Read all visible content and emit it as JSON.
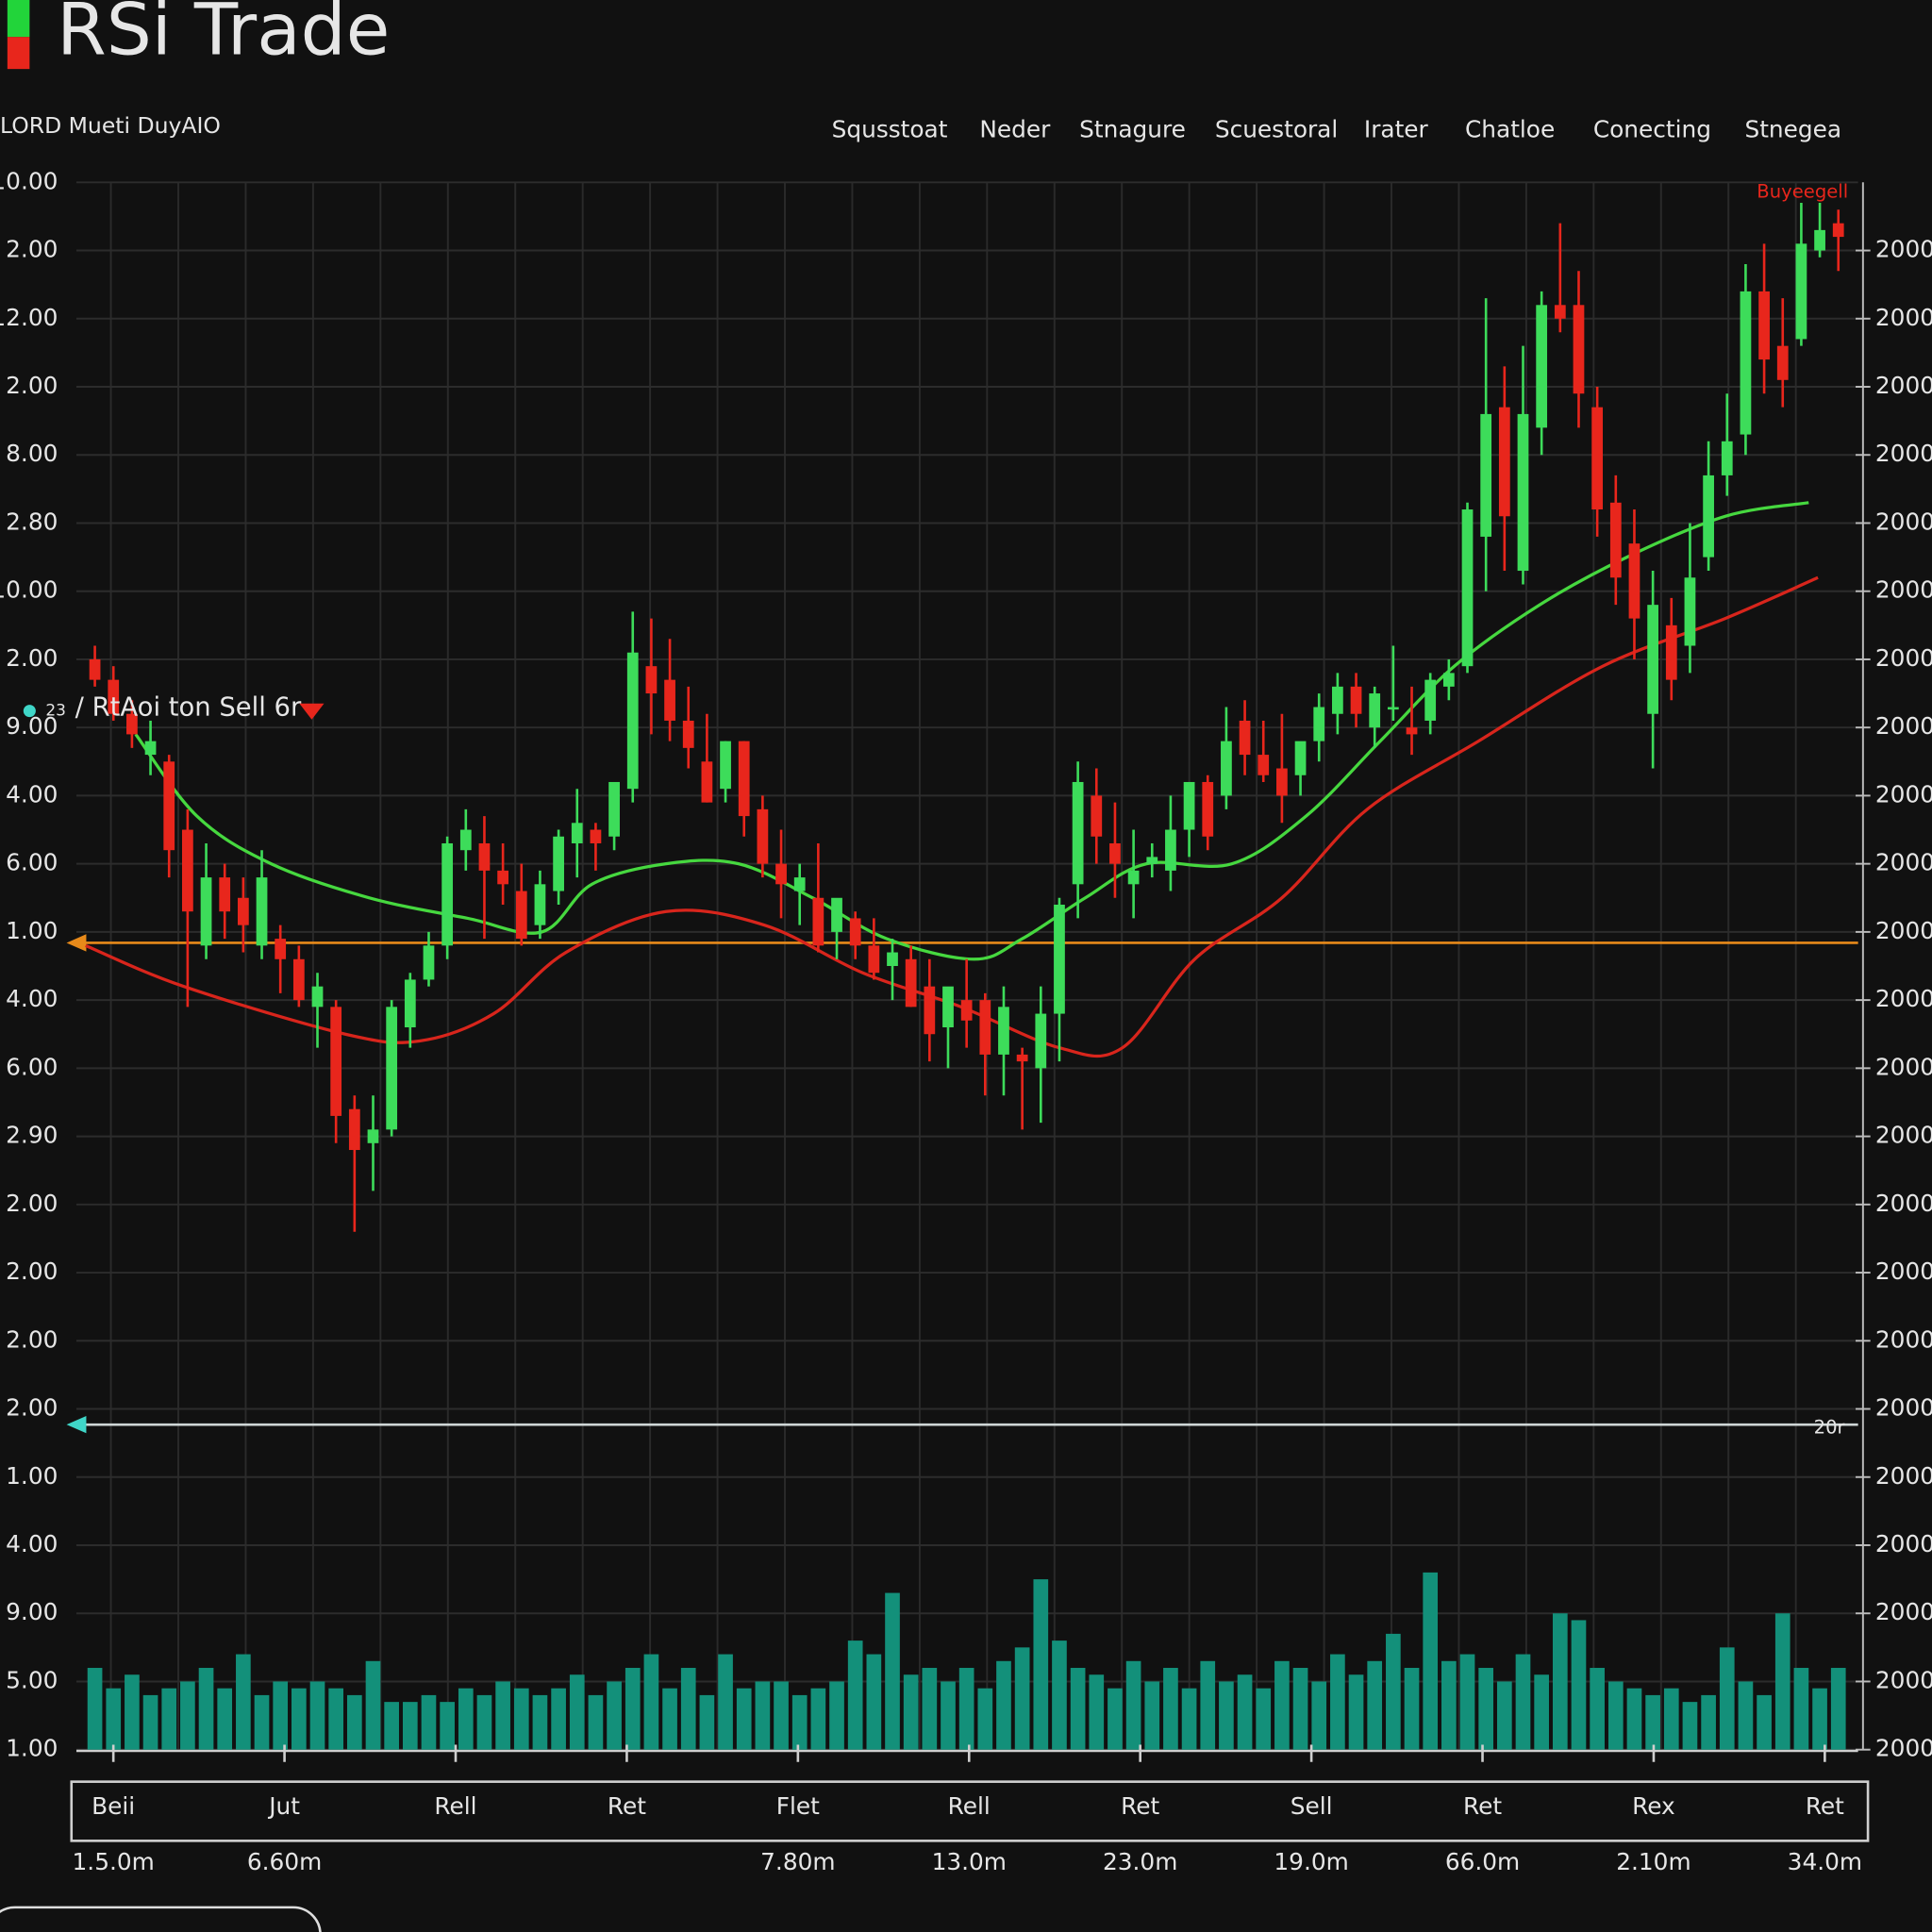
{
  "header": {
    "title": "RSi Trade",
    "subtitle": "LORD  Mueti DuyAIO",
    "menu": [
      "Squsstoat",
      "Neder",
      "Stnagure",
      "Scuestoral",
      "Irater",
      "Chatloe",
      "Conecting",
      "Stnegea"
    ]
  },
  "chart_data": {
    "type": "candlestick",
    "annotation_count": "23",
    "annotation": "/ RtAoi ton Sell 6r",
    "corner_label": "Buyeegell",
    "line_label": "20r",
    "up_color": "#3ddc5a",
    "down_color": "#e8261c",
    "volume_color": "#13907a",
    "ylim": [
      0,
      23
    ],
    "yticks": [
      {
        "value": 23,
        "label": "10.00"
      },
      {
        "value": 22,
        "label": "2.00"
      },
      {
        "value": 21,
        "label": "12.00"
      },
      {
        "value": 20,
        "label": "2.00"
      },
      {
        "value": 19,
        "label": "8.00"
      },
      {
        "value": 18,
        "label": "2.80"
      },
      {
        "value": 17,
        "label": "10.00"
      },
      {
        "value": 16,
        "label": "2.00"
      },
      {
        "value": 15,
        "label": "9.00"
      },
      {
        "value": 14,
        "label": "4.00"
      },
      {
        "value": 13,
        "label": "6.00"
      },
      {
        "value": 12,
        "label": "1.00"
      },
      {
        "value": 11,
        "label": "4.00"
      },
      {
        "value": 10,
        "label": "6.00"
      },
      {
        "value": 9,
        "label": "2.90"
      },
      {
        "value": 8,
        "label": "2.00"
      },
      {
        "value": 7,
        "label": "2.00"
      },
      {
        "value": 6,
        "label": "2.00"
      },
      {
        "value": 5,
        "label": "2.00"
      },
      {
        "value": 4,
        "label": "1.00"
      },
      {
        "value": 3,
        "label": "4.00"
      },
      {
        "value": 2,
        "label": "9.00"
      },
      {
        "value": 1,
        "label": "5.00"
      },
      {
        "value": 0,
        "label": "1.00"
      }
    ],
    "y2lim": [
      0,
      23
    ],
    "y2ticks": [
      {
        "value": 22,
        "label": "2000"
      },
      {
        "value": 21,
        "label": "2000"
      },
      {
        "value": 20,
        "label": "2000"
      },
      {
        "value": 19,
        "label": "2000"
      },
      {
        "value": 18,
        "label": "2000"
      },
      {
        "value": 17,
        "label": "2000"
      },
      {
        "value": 16,
        "label": "2000"
      },
      {
        "value": 15,
        "label": "2000"
      },
      {
        "value": 14,
        "label": "2000"
      },
      {
        "value": 13,
        "label": "2000"
      },
      {
        "value": 12,
        "label": "2000"
      },
      {
        "value": 11,
        "label": "2000"
      },
      {
        "value": 10,
        "label": "2000"
      },
      {
        "value": 9,
        "label": "2000"
      },
      {
        "value": 8,
        "label": "2000"
      },
      {
        "value": 7,
        "label": "2000"
      },
      {
        "value": 6,
        "label": "2000"
      },
      {
        "value": 5,
        "label": "2000"
      },
      {
        "value": 4,
        "label": "2000"
      },
      {
        "value": 3,
        "label": "2000"
      },
      {
        "value": 2,
        "label": "2000"
      },
      {
        "value": 1,
        "label": "2000"
      },
      {
        "value": 0,
        "label": "2000"
      }
    ],
    "grid": true,
    "categories": [
      "Beii",
      "Jut",
      "Rell",
      "Ret",
      "Flet",
      "Rell",
      "Ret",
      "Sell",
      "Ret",
      "Rex",
      "Ret"
    ],
    "category_values": [
      "1.5.0m",
      "6.60m",
      null,
      null,
      "7.80m",
      "13.0m",
      "23.0m",
      "19.0m",
      "66.0m",
      "2.10m",
      "34.0m"
    ],
    "hlines": [
      {
        "value": 11.84,
        "color": "#e88a1a"
      },
      {
        "value": 4.77,
        "color": "#cfd6d6"
      }
    ],
    "candles": [
      [
        16.0,
        16.2,
        15.6,
        15.7
      ],
      [
        15.7,
        15.9,
        15.1,
        15.2
      ],
      [
        15.2,
        15.4,
        14.7,
        14.9
      ],
      [
        14.6,
        15.1,
        14.3,
        14.8
      ],
      [
        14.5,
        14.6,
        12.8,
        13.2
      ],
      [
        13.5,
        13.8,
        10.9,
        12.3
      ],
      [
        11.8,
        13.3,
        11.6,
        12.8
      ],
      [
        12.8,
        13.0,
        11.9,
        12.3
      ],
      [
        12.5,
        12.8,
        11.7,
        12.1
      ],
      [
        11.8,
        13.2,
        11.6,
        12.8
      ],
      [
        11.9,
        12.1,
        11.1,
        11.6
      ],
      [
        11.6,
        11.8,
        10.9,
        11.0
      ],
      [
        10.9,
        11.4,
        10.3,
        11.2
      ],
      [
        10.9,
        11.0,
        8.9,
        9.3
      ],
      [
        9.4,
        9.6,
        7.6,
        8.8
      ],
      [
        8.9,
        9.6,
        8.2,
        9.1
      ],
      [
        9.1,
        11.0,
        9.0,
        10.9
      ],
      [
        10.6,
        11.4,
        10.3,
        11.3
      ],
      [
        11.3,
        12.0,
        11.2,
        11.8
      ],
      [
        11.8,
        13.4,
        11.6,
        13.3
      ],
      [
        13.2,
        13.8,
        12.9,
        13.5
      ],
      [
        13.3,
        13.7,
        11.9,
        12.9
      ],
      [
        12.9,
        13.3,
        12.4,
        12.7
      ],
      [
        12.6,
        13.0,
        11.8,
        11.9
      ],
      [
        12.1,
        12.9,
        11.9,
        12.7
      ],
      [
        12.6,
        13.5,
        12.4,
        13.4
      ],
      [
        13.3,
        14.1,
        12.8,
        13.6
      ],
      [
        13.5,
        13.6,
        12.9,
        13.3
      ],
      [
        13.4,
        14.1,
        13.2,
        14.2
      ],
      [
        14.1,
        16.7,
        13.9,
        16.1
      ],
      [
        15.9,
        16.6,
        14.9,
        15.5
      ],
      [
        15.7,
        16.3,
        14.8,
        15.1
      ],
      [
        15.1,
        15.6,
        14.4,
        14.7
      ],
      [
        14.5,
        15.2,
        13.9,
        13.9
      ],
      [
        14.1,
        14.8,
        13.9,
        14.8
      ],
      [
        14.8,
        14.8,
        13.4,
        13.7
      ],
      [
        13.8,
        14.0,
        12.8,
        13.0
      ],
      [
        13.0,
        13.5,
        12.2,
        12.7
      ],
      [
        12.6,
        13.0,
        12.1,
        12.8
      ],
      [
        12.5,
        13.3,
        11.7,
        11.8
      ],
      [
        12.0,
        12.4,
        11.6,
        12.5
      ],
      [
        12.2,
        12.3,
        11.6,
        11.8
      ],
      [
        11.8,
        12.2,
        11.3,
        11.4
      ],
      [
        11.5,
        11.9,
        11.0,
        11.7
      ],
      [
        11.6,
        11.8,
        10.9,
        10.9
      ],
      [
        11.2,
        11.6,
        10.1,
        10.5
      ],
      [
        10.6,
        11.1,
        10.0,
        11.2
      ],
      [
        11.0,
        11.6,
        10.3,
        10.7
      ],
      [
        11.0,
        11.1,
        9.6,
        10.2
      ],
      [
        10.2,
        11.2,
        9.6,
        10.9
      ],
      [
        10.2,
        10.3,
        9.1,
        10.1
      ],
      [
        10.0,
        11.2,
        9.2,
        10.8
      ],
      [
        10.8,
        12.5,
        10.1,
        12.4
      ],
      [
        12.7,
        14.5,
        12.2,
        14.2
      ],
      [
        14.0,
        14.4,
        13.0,
        13.4
      ],
      [
        13.3,
        13.9,
        12.5,
        13.0
      ],
      [
        12.7,
        13.5,
        12.2,
        12.9
      ],
      [
        13.0,
        13.3,
        12.8,
        13.1
      ],
      [
        12.9,
        14.0,
        12.6,
        13.5
      ],
      [
        13.5,
        14.1,
        13.1,
        14.2
      ],
      [
        14.2,
        14.3,
        13.2,
        13.4
      ],
      [
        14.0,
        15.3,
        13.8,
        14.8
      ],
      [
        15.1,
        15.4,
        14.3,
        14.6
      ],
      [
        14.6,
        15.1,
        14.2,
        14.3
      ],
      [
        14.4,
        15.2,
        13.6,
        14.0
      ],
      [
        14.3,
        14.7,
        14.0,
        14.8
      ],
      [
        14.8,
        15.5,
        14.5,
        15.3
      ],
      [
        15.2,
        15.8,
        14.9,
        15.6
      ],
      [
        15.6,
        15.8,
        15.0,
        15.2
      ],
      [
        15.0,
        15.6,
        14.7,
        15.5
      ],
      [
        15.3,
        16.2,
        15.1,
        15.3
      ],
      [
        15.0,
        15.6,
        14.6,
        14.9
      ],
      [
        15.1,
        15.8,
        14.9,
        15.7
      ],
      [
        15.6,
        16.0,
        15.4,
        15.8
      ],
      [
        15.9,
        18.3,
        15.8,
        18.2
      ],
      [
        17.8,
        21.3,
        17.0,
        19.6
      ],
      [
        19.7,
        20.3,
        17.3,
        18.1
      ],
      [
        17.3,
        20.6,
        17.1,
        19.6
      ],
      [
        19.4,
        21.4,
        19.0,
        21.2
      ],
      [
        21.2,
        22.4,
        20.8,
        21.0
      ],
      [
        21.2,
        21.7,
        19.4,
        19.9
      ],
      [
        19.7,
        20.0,
        17.8,
        18.2
      ],
      [
        18.3,
        18.7,
        16.8,
        17.2
      ],
      [
        17.7,
        18.2,
        16.0,
        16.6
      ],
      [
        15.2,
        17.3,
        14.4,
        16.8
      ],
      [
        16.5,
        16.9,
        15.4,
        15.7
      ],
      [
        16.2,
        18.0,
        15.8,
        17.2
      ],
      [
        17.5,
        19.2,
        17.3,
        18.7
      ],
      [
        18.7,
        19.9,
        18.4,
        19.2
      ],
      [
        19.3,
        21.8,
        19.0,
        21.4
      ],
      [
        21.4,
        22.1,
        19.9,
        20.4
      ],
      [
        20.6,
        21.3,
        19.7,
        20.1
      ],
      [
        20.7,
        22.7,
        20.6,
        22.1
      ],
      [
        22.0,
        22.7,
        21.9,
        22.3
      ],
      [
        22.4,
        22.6,
        21.7,
        22.2
      ]
    ],
    "volume": [
      1.2,
      0.9,
      1.1,
      0.8,
      0.9,
      1.0,
      1.2,
      0.9,
      1.4,
      0.8,
      1.0,
      0.9,
      1.0,
      0.9,
      0.8,
      1.3,
      0.7,
      0.7,
      0.8,
      0.7,
      0.9,
      0.8,
      1.0,
      0.9,
      0.8,
      0.9,
      1.1,
      0.8,
      1.0,
      1.2,
      1.4,
      0.9,
      1.2,
      0.8,
      1.4,
      0.9,
      1.0,
      1.0,
      0.8,
      0.9,
      1.0,
      1.6,
      1.4,
      2.3,
      1.1,
      1.2,
      1.0,
      1.2,
      0.9,
      1.3,
      1.5,
      2.5,
      1.6,
      1.2,
      1.1,
      0.9,
      1.3,
      1.0,
      1.2,
      0.9,
      1.3,
      1.0,
      1.1,
      0.9,
      1.3,
      1.2,
      1.0,
      1.4,
      1.1,
      1.3,
      1.7,
      1.2,
      2.6,
      1.3,
      1.4,
      1.2,
      1.0,
      1.4,
      1.1,
      2.0,
      1.9,
      1.2,
      1.0,
      0.9,
      0.8,
      0.9,
      0.7,
      0.8,
      1.5,
      1.0,
      0.8,
      2.0,
      1.2,
      0.9,
      1.2
    ],
    "lines": [
      {
        "color": "#46d83f",
        "x": [
          2.2,
          5.5,
          9.5,
          14.8,
          20.1,
          24.1,
          26.8,
          30.8,
          34.7,
          38.7,
          42.7,
          47.4,
          50,
          53.4,
          56.7,
          61.3,
          65.3,
          69.3,
          73.3,
          77.9,
          82.6,
          87.9,
          92.4
        ],
        "values": [
          14.9,
          13.7,
          13.0,
          12.5,
          12.2,
          12.0,
          12.7,
          13.0,
          13.0,
          12.5,
          11.9,
          11.6,
          11.9,
          12.5,
          13.0,
          13.0,
          13.7,
          14.8,
          15.9,
          16.8,
          17.5,
          18.1,
          18.3
        ]
      },
      {
        "color": "#d8251c",
        "x": [
          -0.5,
          4.8,
          13.5,
          17.5,
          21.5,
          25.4,
          30.8,
          36.1,
          41.4,
          46.7,
          52,
          55.4,
          59.3,
          64,
          68.6,
          74.6,
          81.3,
          87.9,
          92.9
        ],
        "values": [
          11.8,
          11.2,
          10.5,
          10.4,
          10.8,
          11.7,
          12.3,
          12.1,
          11.4,
          10.9,
          10.3,
          10.3,
          11.6,
          12.5,
          13.8,
          14.8,
          15.9,
          16.6,
          17.2
        ]
      }
    ]
  }
}
